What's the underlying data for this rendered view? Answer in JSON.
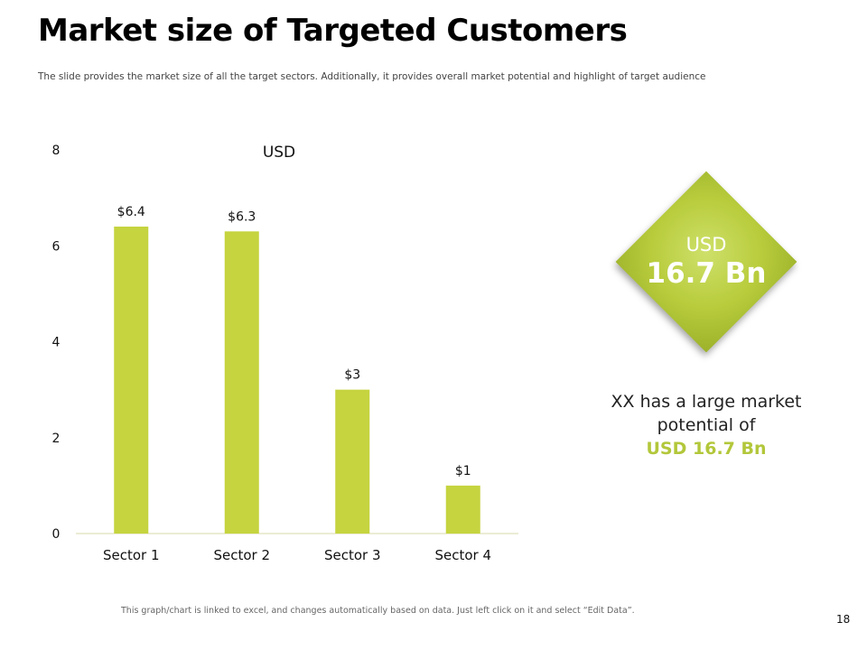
{
  "slide": {
    "title": "Market size of Targeted Customers",
    "subtitle": "The slide provides the market size of all the target sectors. Additionally, it provides overall market potential and highlight of target audience",
    "footnote": "This graph/chart is linked to excel, and changes automatically based on data. Just left click on it and select “Edit Data”.",
    "page_number": "18"
  },
  "highlight": {
    "currency": "USD",
    "value": "16.7 Bn",
    "text_line": "XX has a large market potential of",
    "text_highlight": "USD 16.7 Bn"
  },
  "colors": {
    "accent": "#c5d43f",
    "highlight_text": "#b3c73a"
  },
  "chart_data": {
    "type": "bar",
    "title": "USD",
    "categories": [
      "Sector 1",
      "Sector 2",
      "Sector 3",
      "Sector 4"
    ],
    "values": [
      6.4,
      6.3,
      3,
      1
    ],
    "data_labels": [
      "$6.4",
      "$6.3",
      "$3",
      "$1"
    ],
    "xlabel": "",
    "ylabel": "",
    "ylim": [
      0,
      8
    ],
    "yticks": [
      0,
      2,
      4,
      6,
      8
    ],
    "grid": false,
    "legend": "none"
  }
}
